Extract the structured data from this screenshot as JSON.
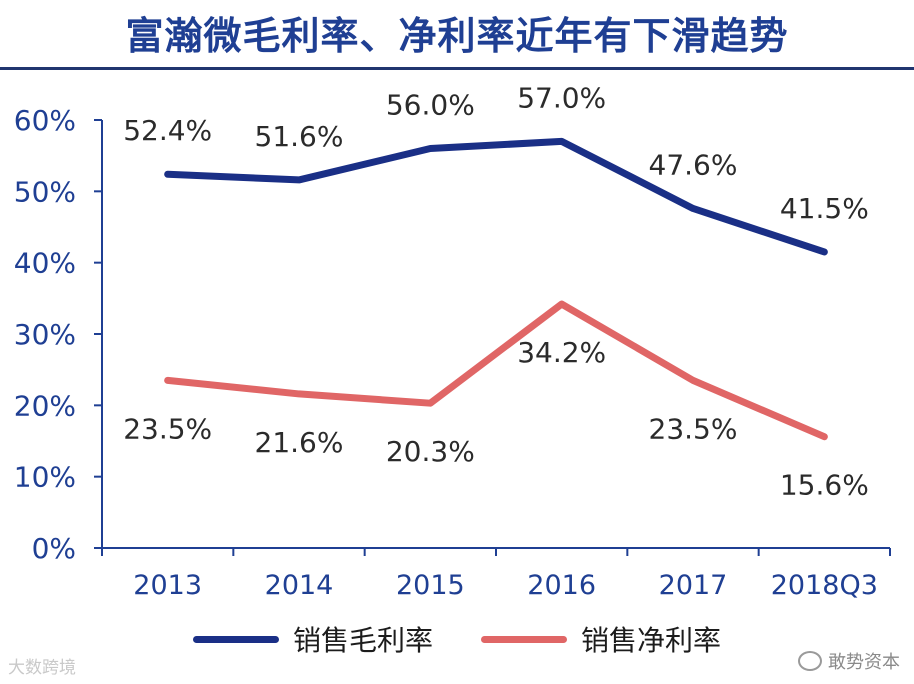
{
  "title": "富瀚微毛利率、净利率近年有下滑趋势",
  "chart_data": {
    "type": "line",
    "categories": [
      "2013",
      "2014",
      "2015",
      "2016",
      "2017",
      "2018Q3"
    ],
    "series": [
      {
        "name": "销售毛利率",
        "color": "#1a2f86",
        "values": [
          52.4,
          51.6,
          56.0,
          57.0,
          47.6,
          41.5
        ],
        "labels": [
          "52.4%",
          "51.6%",
          "56.0%",
          "57.0%",
          "47.6%",
          "41.5%"
        ]
      },
      {
        "name": "销售净利率",
        "color": "#e06666",
        "values": [
          23.5,
          21.6,
          20.3,
          34.2,
          23.5,
          15.6
        ],
        "labels": [
          "23.5%",
          "21.6%",
          "20.3%",
          "34.2%",
          "23.5%",
          "15.6%"
        ]
      }
    ],
    "ylim": [
      0,
      60
    ],
    "yticks": [
      "0%",
      "10%",
      "20%",
      "30%",
      "40%",
      "50%",
      "60%"
    ],
    "axis_color": "#1f3f93",
    "legend": "bottom"
  },
  "watermarks": {
    "left": "大数跨境",
    "right": "敢势资本"
  }
}
